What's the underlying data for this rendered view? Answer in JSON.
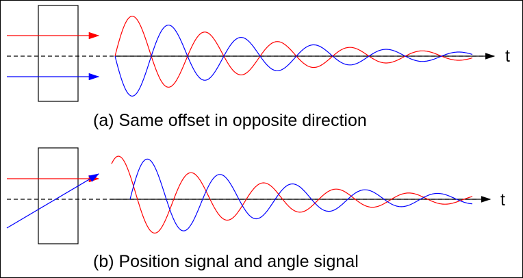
{
  "panels": [
    {
      "id": "a",
      "caption": "(a) Same offset in opposite direction",
      "axis_label": "t",
      "beams": [
        {
          "color": "#ff0000",
          "description": "red beam offset above axis"
        },
        {
          "color": "#0000ff",
          "description": "blue beam offset below axis"
        }
      ]
    },
    {
      "id": "b",
      "caption": "(b) Position signal and angle signal",
      "axis_label": "t",
      "beams": [
        {
          "color": "#ff0000",
          "description": "red beam offset above axis"
        },
        {
          "color": "#0000ff",
          "description": "blue beam entering at an angle"
        }
      ]
    }
  ],
  "colors": {
    "red": "#ff0000",
    "blue": "#0000ff",
    "axis": "#000000"
  }
}
